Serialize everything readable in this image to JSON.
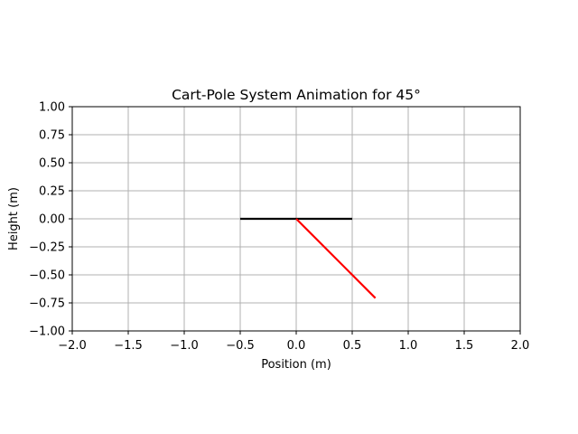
{
  "chart_data": {
    "type": "line",
    "title": "Cart-Pole System Animation for 45°",
    "xlabel": "Position (m)",
    "ylabel": "Height (m)",
    "xlim": [
      -2.0,
      2.0
    ],
    "ylim": [
      -1.0,
      1.0
    ],
    "grid": true,
    "x_ticks": [
      -2.0,
      -1.5,
      -1.0,
      -0.5,
      0.0,
      0.5,
      1.0,
      1.5,
      2.0
    ],
    "x_tick_labels": [
      "−2.0",
      "−1.5",
      "−1.0",
      "−0.5",
      "0.0",
      "0.5",
      "1.0",
      "1.5",
      "2.0"
    ],
    "y_ticks": [
      1.0,
      0.75,
      0.5,
      0.25,
      0.0,
      -0.25,
      -0.5,
      -0.75,
      -1.0
    ],
    "y_tick_labels": [
      "1.00",
      "0.75",
      "0.50",
      "0.25",
      "0.00",
      "−0.25",
      "−0.50",
      "−0.75",
      "−1.00"
    ],
    "series": [
      {
        "key": "cart",
        "color": "#000000",
        "x": [
          -0.5,
          0.5
        ],
        "y": [
          0.0,
          0.0
        ]
      },
      {
        "key": "pole",
        "color": "#ff0000",
        "x": [
          0.0,
          0.707
        ],
        "y": [
          0.0,
          -0.707
        ]
      }
    ]
  }
}
